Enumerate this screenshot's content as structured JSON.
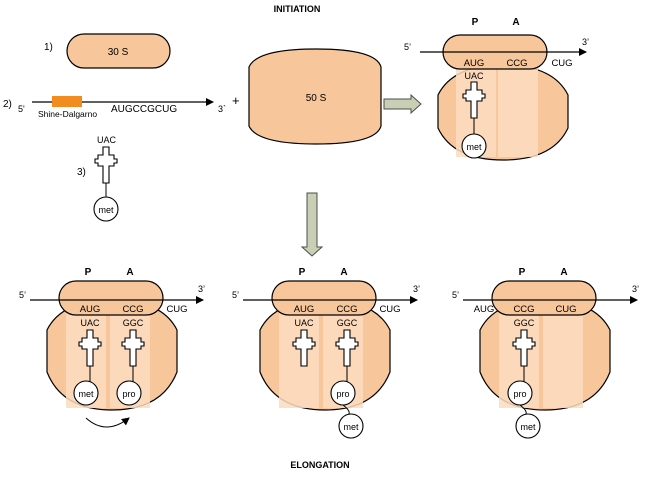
{
  "titles": {
    "initiation": "INITIATION",
    "elongation": "ELONGATION"
  },
  "steps": {
    "s1": "1)",
    "s2": "2)",
    "s3": "3)"
  },
  "subunits": {
    "small": "30 S",
    "large": "50 S"
  },
  "plus": "+",
  "mrna": {
    "five": "5'",
    "five_alt": "5’",
    "three": "3'",
    "three_alt": "3’",
    "three_step2": "3`",
    "shine": "Shine-Dalgarno",
    "seq": "AUGCCGCUG"
  },
  "sites": {
    "p": "P",
    "a": "A"
  },
  "codons": {
    "aug": "AUG",
    "ccg": "CCG",
    "cug": "CUG"
  },
  "anticodons": {
    "uac": "UAC",
    "ggc": "GGC"
  },
  "amino": {
    "met": "met",
    "pro": "pro"
  },
  "colors": {
    "subunit": "#f7c69a",
    "channel": "#fbdcc0",
    "shine_dalgarno": "#f28c1e",
    "arrow": "#c9cfb4"
  }
}
